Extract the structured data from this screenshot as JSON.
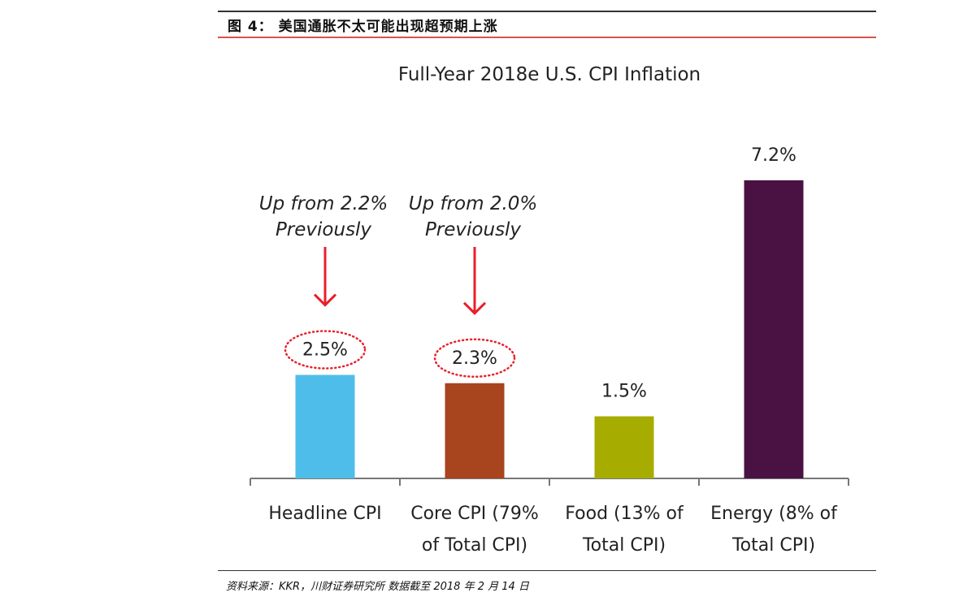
{
  "figure_label": "图 4：  美国通胀不太可能出现超预期上涨",
  "source": "资料来源：KKR，川财证券研究所    数据截至 2018 年 2 月 14 日",
  "chart_data": {
    "type": "bar",
    "title": "Full-Year 2018e U.S. CPI Inflation",
    "categories": [
      [
        "Headline CPI"
      ],
      [
        "Core CPI (79%",
        "of Total CPI)"
      ],
      [
        "Food (13% of",
        "Total CPI)"
      ],
      [
        "Energy (8% of",
        "Total CPI)"
      ]
    ],
    "values": [
      2.5,
      2.3,
      1.5,
      7.2
    ],
    "value_labels": [
      "2.5%",
      "2.3%",
      "1.5%",
      "7.2%"
    ],
    "colors": [
      "#4fbde9",
      "#a8441e",
      "#a6ad00",
      "#4a1243"
    ],
    "highlighted": [
      true,
      true,
      false,
      false
    ],
    "annotations": [
      {
        "category_index": 0,
        "lines": [
          "Up from 2.2%",
          "Previously"
        ]
      },
      {
        "category_index": 1,
        "lines": [
          "Up from 2.0%",
          "Previously"
        ]
      }
    ],
    "annotation_color": "#e8202a",
    "xlabel": "",
    "ylabel": "",
    "ylim": [
      0,
      7.2
    ],
    "grid": false
  }
}
